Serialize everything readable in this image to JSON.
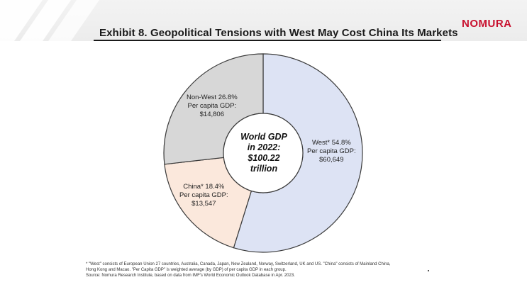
{
  "header": {
    "title": "Exhibit 8. Geopolitical Tensions with West May Cost China Its Markets",
    "logo": "NOMURA"
  },
  "center_label": {
    "line1": "World GDP",
    "line2": "in 2022:",
    "line3": "$100.22",
    "line4": "trillion"
  },
  "labels": {
    "west": {
      "line1": "West* 54.8%",
      "line2": "Per capita GDP:",
      "line3": "$60,649"
    },
    "non_west": {
      "line1": "Non-West 26.8%",
      "line2": "Per capita GDP:",
      "line3": "$14,806"
    },
    "china": {
      "line1": "China* 18.4%",
      "line2": "Per capita GDP:",
      "line3": "$13,547"
    }
  },
  "footnotes": {
    "line1": "* \"West\" consists of European Union 27 countries, Australia, Canada, Japan, New Zealand, Norway, Switzerland, UK and US. \"China\" consists of Mainland China,",
    "line2": "Hong Kong and Macao. \"Per Capita GDP\" is weighted average (by GDP) of per capita GDP in each group.",
    "line3": "Source: Nomura Research Institute, based on data from IMF's World Economic Outlook Database in Apr. 2023."
  },
  "chart_data": {
    "type": "pie",
    "title": "Exhibit 8. Geopolitical Tensions with West May Cost China Its Markets",
    "center_text": "World GDP in 2022: $100.22 trillion",
    "total_gdp_trillion_usd": 100.22,
    "slices": [
      {
        "name": "West*",
        "share_pct": 54.8,
        "per_capita_gdp_usd": 60649,
        "color": "#dde3f4"
      },
      {
        "name": "China*",
        "share_pct": 18.4,
        "per_capita_gdp_usd": 13547,
        "color": "#fbe8dc"
      },
      {
        "name": "Non-West",
        "share_pct": 26.8,
        "per_capita_gdp_usd": 14806,
        "color": "#d7d7d7"
      }
    ],
    "legend": "none"
  },
  "colors": {
    "title_text": "#1a1a1a",
    "logo": "#c8102e",
    "slice_outline": "#3a3a3a"
  }
}
